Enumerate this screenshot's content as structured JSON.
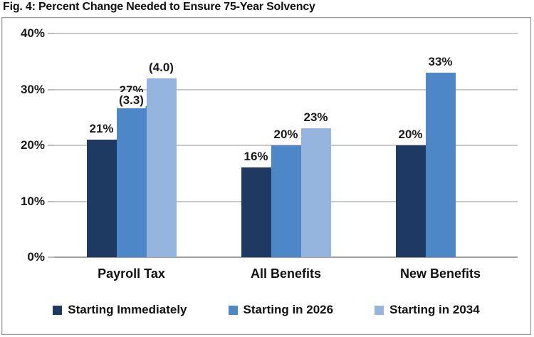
{
  "figure": {
    "title": "Fig. 4: Percent Change Needed to Ensure 75-Year Solvency"
  },
  "chart_data": {
    "type": "bar",
    "title": "Fig. 4: Percent Change Needed to Ensure 75-Year Solvency",
    "categories": [
      "Payroll Tax",
      "All Benefits",
      "New Benefits"
    ],
    "series": [
      {
        "name": "Starting Immediately",
        "color": "#1e3a62",
        "values": [
          21,
          16,
          20
        ],
        "labels": [
          "21%",
          "16%",
          "20%"
        ]
      },
      {
        "name": "Starting in 2026",
        "color": "#4e87c8",
        "values": [
          27,
          20,
          33
        ],
        "labels": [
          "27%",
          "20%",
          "33%"
        ]
      },
      {
        "name": "Starting in 2034",
        "color": "#95b5de",
        "values": [
          32,
          23,
          null
        ],
        "labels": [
          "",
          "23%",
          ""
        ]
      }
    ],
    "annotations": [
      {
        "text": "(3.3)",
        "category": 0,
        "series": 1,
        "covers_label": true
      },
      {
        "text": "(4.0)",
        "category": 0,
        "series": 2,
        "covers_label": false
      }
    ],
    "xlabel": "",
    "ylabel": "",
    "ylim": [
      0,
      40
    ],
    "yticks": [
      "40%",
      "30%",
      "20%",
      "10%",
      "0%"
    ],
    "grid": true,
    "legend_position": "bottom",
    "colors": {
      "grid": "#c9c9c9",
      "axis": "#9e9e9e",
      "text": "#1a1a1a",
      "box_border": "#9b9b9b"
    }
  }
}
